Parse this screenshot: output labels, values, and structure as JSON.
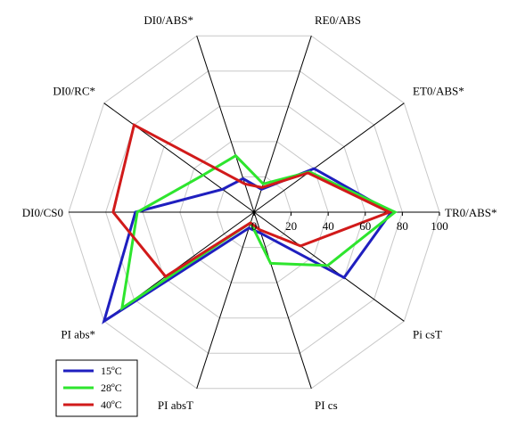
{
  "chart_data": {
    "type": "radar",
    "axes": [
      "TR0/ABS*",
      "ET0/ABS*",
      "RE0/ABS",
      "DI0/ABS*",
      "DI0/RC*",
      "DI0/CS0",
      "PI abs*",
      "PI absT",
      "PI cs",
      "Pi csT"
    ],
    "rlim": [
      0,
      100
    ],
    "ticks": [
      0,
      20,
      40,
      60,
      80,
      100
    ],
    "grid": true,
    "legend_position": "bottom-left",
    "series": [
      {
        "name": "15ºC",
        "color": "#1f1fbf",
        "values": [
          74,
          40,
          13,
          19,
          21,
          64,
          100,
          9,
          12,
          60
        ]
      },
      {
        "name": "28ºC",
        "color": "#2ee52e",
        "values": [
          76,
          37,
          16,
          32,
          34,
          63,
          88,
          6,
          29,
          49
        ]
      },
      {
        "name": "40ºC",
        "color": "#d11a1a",
        "values": [
          73,
          36,
          14,
          16,
          80,
          76,
          59,
          6,
          10,
          31
        ]
      }
    ]
  }
}
